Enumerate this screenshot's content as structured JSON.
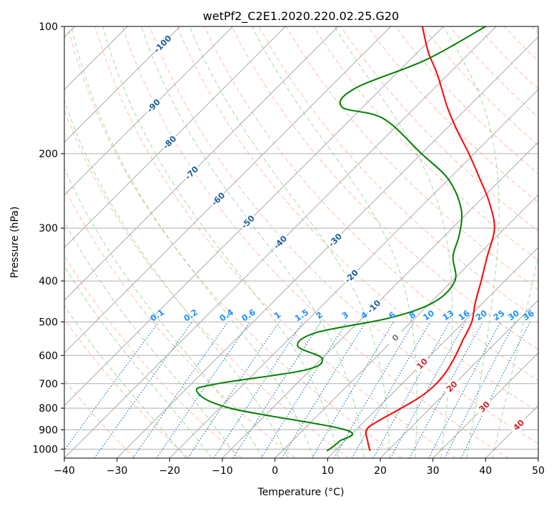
{
  "chart_data": {
    "type": "line",
    "chart_kind": "skew-T log-P diagram",
    "title": "wetPf2_C2E1.2020.220.02.25.G20",
    "xlabel": "Temperature (°C)",
    "ylabel": "Pressure (hPa)",
    "xlim": [
      -40,
      50
    ],
    "ylim": [
      1050,
      100
    ],
    "y_scale": "log",
    "x_ticks": [
      -40,
      -30,
      -20,
      -10,
      0,
      10,
      20,
      30,
      40,
      50
    ],
    "y_ticks": [
      100,
      200,
      300,
      400,
      500,
      600,
      700,
      800,
      900,
      1000
    ],
    "grid": true,
    "series": [
      {
        "role": "temperature",
        "color": "#ff0000",
        "points": [
          {
            "t": 16.7,
            "p": 1010
          },
          {
            "t": 14.5,
            "p": 960
          },
          {
            "t": 12.0,
            "p": 900
          },
          {
            "t": 12.5,
            "p": 860
          },
          {
            "t": 14.5,
            "p": 800
          },
          {
            "t": 16.0,
            "p": 750
          },
          {
            "t": 16.5,
            "p": 700
          },
          {
            "t": 16.0,
            "p": 650
          },
          {
            "t": 14.8,
            "p": 600
          },
          {
            "t": 13.2,
            "p": 550
          },
          {
            "t": 11.5,
            "p": 500
          },
          {
            "t": 8.5,
            "p": 450
          },
          {
            "t": 5.5,
            "p": 400
          },
          {
            "t": 2.0,
            "p": 350
          },
          {
            "t": -2.0,
            "p": 300
          },
          {
            "t": -8.0,
            "p": 260
          },
          {
            "t": -14.0,
            "p": 230
          },
          {
            "t": -21.0,
            "p": 200
          },
          {
            "t": -28.0,
            "p": 175
          },
          {
            "t": -34.0,
            "p": 155
          },
          {
            "t": -42.0,
            "p": 130
          },
          {
            "t": -48.0,
            "p": 115
          },
          {
            "t": -54.0,
            "p": 100
          }
        ]
      },
      {
        "role": "dewpoint",
        "color": "#008000",
        "points": [
          {
            "t": 8.5,
            "p": 1010
          },
          {
            "t": 9.0,
            "p": 960
          },
          {
            "t": 8.0,
            "p": 900
          },
          {
            "t": -18.0,
            "p": 800
          },
          {
            "t": -27.5,
            "p": 730
          },
          {
            "t": -25.0,
            "p": 700
          },
          {
            "t": -11.0,
            "p": 650
          },
          {
            "t": -10.0,
            "p": 610
          },
          {
            "t": -17.0,
            "p": 570
          },
          {
            "t": -16.0,
            "p": 530
          },
          {
            "t": -5.0,
            "p": 490
          },
          {
            "t": 0.5,
            "p": 450
          },
          {
            "t": 0.5,
            "p": 400
          },
          {
            "t": -4.5,
            "p": 350
          },
          {
            "t": -7.5,
            "p": 310
          },
          {
            "t": -12.0,
            "p": 270
          },
          {
            "t": -20.0,
            "p": 230
          },
          {
            "t": -30.0,
            "p": 200
          },
          {
            "t": -44.0,
            "p": 165
          },
          {
            "t": -54.0,
            "p": 155
          },
          {
            "t": -55.0,
            "p": 140
          },
          {
            "t": -47.0,
            "p": 120
          },
          {
            "t": -42.0,
            "p": 100
          }
        ]
      }
    ],
    "reference_lines": {
      "isotherms_color": "#aaaaaa",
      "dry_adiabats_color": "#ff9f80",
      "moist_adiabats_color": "#7fc97f",
      "mixing_ratio_color": "#1f77b4",
      "mixing_ratio_label_color": "#1e90ff",
      "mixing_ratio_labels": [
        "0.1",
        "0.2",
        "0.4",
        "0.6",
        "1",
        "1.5",
        "2",
        "3",
        "4",
        "6",
        "8",
        "10",
        "13",
        "16",
        "20",
        "25",
        "30",
        "36"
      ],
      "skew_label_values": [
        "-100",
        "-90",
        "-80",
        "-70",
        "-60",
        "-50",
        "-40",
        "-30",
        "-20",
        "-10",
        "0",
        "10",
        "20",
        "30",
        "40"
      ],
      "skew_label_colors": {
        "cold": "#1f5f9a",
        "zero": "#808080",
        "warm": "#d62728"
      }
    }
  }
}
